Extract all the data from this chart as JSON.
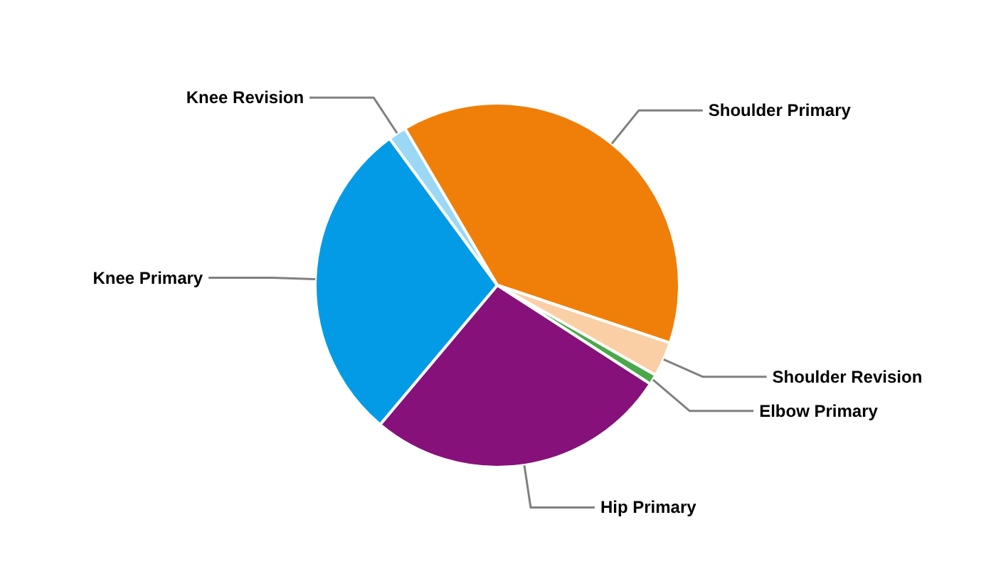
{
  "chart_data": {
    "type": "pie",
    "categories": [
      "Shoulder Primary",
      "Shoulder Revision",
      "Elbow Primary",
      "Hip Primary",
      "Knee Primary",
      "Knee Revision"
    ],
    "values": [
      38.6,
      3.1,
      0.9,
      27.0,
      28.8,
      1.6
    ],
    "colors": [
      "#f07f09",
      "#fbcfa6",
      "#4aa84a",
      "#86117a",
      "#039be5",
      "#9ad8f5"
    ]
  }
}
